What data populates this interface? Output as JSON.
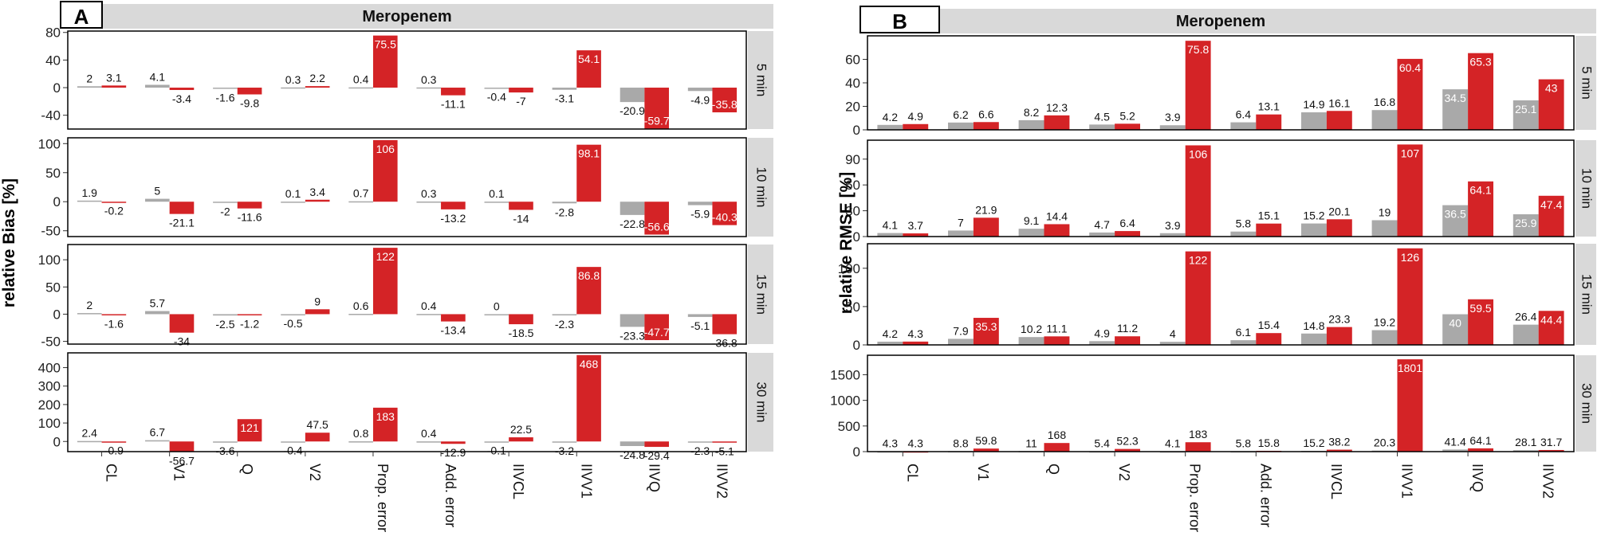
{
  "colors": {
    "gray": "#a9a9a9",
    "red": "#d42326",
    "strip": "#d9d9d9"
  },
  "chart_data": [
    {
      "type": "bar",
      "panel_label": "A",
      "title": "Meropenem",
      "ylabel": "relative Bias [%]",
      "categories": [
        "CL",
        "V1",
        "Q",
        "V2",
        "Prop. error",
        "Add. error",
        "IIVCL",
        "IIVV1",
        "IIVQ",
        "IIVV2"
      ],
      "facets": [
        {
          "label": "5 min",
          "ylim": [
            -60,
            82
          ],
          "ticks": [
            -40,
            0,
            40,
            80
          ],
          "tick_labels": [
            "-40",
            "0",
            "40",
            "80"
          ],
          "gray": [
            2,
            4.1,
            -1.6,
            0.3,
            0.4,
            0.3,
            -0.4,
            -3.1,
            -20.9,
            -4.9
          ],
          "red": [
            3.1,
            -3.4,
            -9.8,
            2.2,
            75.5,
            -11.1,
            -7,
            54.1,
            -59.7,
            -35.8
          ],
          "gray_labels": [
            "2",
            "4.1",
            "-1.6",
            "0.3",
            "0.4",
            "0.3",
            "-0.4",
            "-3.1",
            "-20.9",
            "-4.9"
          ],
          "red_labels": [
            "3.1",
            "-3.4",
            "-9.8",
            "2.2",
            "75.5",
            "-11.1",
            "-7",
            "54.1",
            "-59.7",
            "-35.8"
          ]
        },
        {
          "label": "10 min",
          "ylim": [
            -60,
            110
          ],
          "ticks": [
            -50,
            0,
            50,
            100
          ],
          "tick_labels": [
            "-50",
            "0",
            "50",
            "100"
          ],
          "gray": [
            1.9,
            5,
            -2,
            0.1,
            0.7,
            0.3,
            0.1,
            -2.8,
            -22.8,
            -5.9
          ],
          "red": [
            -0.2,
            -21.1,
            -11.6,
            3.4,
            106,
            -13.2,
            -14,
            98.1,
            -56.6,
            -40.3
          ],
          "gray_labels": [
            "1.9",
            "5",
            "-2",
            "0.1",
            "0.7",
            "0.3",
            "0.1",
            "-2.8",
            "-22.8",
            "-5.9"
          ],
          "red_labels": [
            "-0.2",
            "-21.1",
            "-11.6",
            "3.4",
            "106",
            "-13.2",
            "-14",
            "98.1",
            "-56.6",
            "-40.3"
          ]
        },
        {
          "label": "15 min",
          "ylim": [
            -55,
            128
          ],
          "ticks": [
            -50,
            0,
            50,
            100
          ],
          "tick_labels": [
            "-50",
            "0",
            "50",
            "100"
          ],
          "gray": [
            2,
            5.7,
            -2.5,
            -0.5,
            0.6,
            0.4,
            0,
            -2.3,
            -23.3,
            -5.1
          ],
          "red": [
            -1.6,
            -34,
            -1.2,
            9,
            122,
            -13.4,
            -18.5,
            86.8,
            -47.7,
            -36.8
          ],
          "gray_labels": [
            "2",
            "5.7",
            "-2.5",
            "-0.5",
            "0.6",
            "0.4",
            "0",
            "-2.3",
            "-23.3",
            "-5.1"
          ],
          "red_labels": [
            "-1.6",
            "-34",
            "-1.2",
            "9",
            "122",
            "-13.4",
            "-18.5",
            "86.8",
            "-47.7",
            "-36.8"
          ]
        },
        {
          "label": "30 min",
          "ylim": [
            -55,
            480
          ],
          "ticks": [
            0,
            100,
            200,
            300,
            400
          ],
          "tick_labels": [
            "0",
            "100",
            "200",
            "300",
            "400"
          ],
          "gray": [
            2.4,
            6.7,
            -3.6,
            -0.4,
            0.8,
            0.4,
            -0.1,
            -3.2,
            -24.8,
            -2.3
          ],
          "red": [
            -0.9,
            -56.7,
            121,
            47.5,
            183,
            -12.9,
            22.5,
            468,
            -29.4,
            -5.1
          ],
          "gray_labels": [
            "2.4",
            "6.7",
            "-3.6",
            "-0.4",
            "0.8",
            "0.4",
            "-0.1",
            "-3.2",
            "-24.8",
            "-2.3"
          ],
          "red_labels": [
            "-0.9",
            "-56.7",
            "121",
            "47.5",
            "183",
            "-12.9",
            "22.5",
            "468",
            "-29.4",
            "-5.1"
          ]
        }
      ]
    },
    {
      "type": "bar",
      "panel_label": "B",
      "title": "Meropenem",
      "ylabel": "relative RMSE [%]",
      "categories": [
        "CL",
        "V1",
        "Q",
        "V2",
        "Prop. error",
        "Add. error",
        "IIVCL",
        "IIVV1",
        "IIVQ",
        "IIVV2"
      ],
      "facets": [
        {
          "label": "5 min",
          "ylim": [
            0,
            80
          ],
          "ticks": [
            0,
            20,
            40,
            60
          ],
          "tick_labels": [
            "0",
            "20",
            "40",
            "60"
          ],
          "gray": [
            4.2,
            6.2,
            8.2,
            4.5,
            3.9,
            6.4,
            14.9,
            16.8,
            34.5,
            25.1
          ],
          "red": [
            4.9,
            6.6,
            12.3,
            5.2,
            75.8,
            13.1,
            16.1,
            60.4,
            65.3,
            43
          ],
          "gray_labels": [
            "4.2",
            "6.2",
            "8.2",
            "4.5",
            "3.9",
            "6.4",
            "14.9",
            "16.8",
            "34.5",
            "25.1"
          ],
          "red_labels": [
            "4.9",
            "6.6",
            "12.3",
            "5.2",
            "75.8",
            "13.1",
            "16.1",
            "60.4",
            "65.3",
            "43"
          ]
        },
        {
          "label": "10 min",
          "ylim": [
            0,
            112
          ],
          "ticks": [
            0,
            30,
            60,
            90
          ],
          "tick_labels": [
            "0",
            "30",
            "60",
            "90"
          ],
          "gray": [
            4.1,
            7,
            9.1,
            4.7,
            3.9,
            5.8,
            15.2,
            19,
            36.5,
            25.9
          ],
          "red": [
            3.7,
            21.9,
            14.4,
            6.4,
            106,
            15.1,
            20.1,
            107,
            64.1,
            47.4
          ],
          "gray_labels": [
            "4.1",
            "7",
            "9.1",
            "4.7",
            "3.9",
            "5.8",
            "15.2",
            "19",
            "36.5",
            "25.9"
          ],
          "red_labels": [
            "3.7",
            "21.9",
            "14.4",
            "6.4",
            "106",
            "15.1",
            "20.1",
            "107",
            "64.1",
            "47.4"
          ]
        },
        {
          "label": "15 min",
          "ylim": [
            0,
            132
          ],
          "ticks": [
            0,
            50,
            100
          ],
          "tick_labels": [
            "0",
            "50",
            "100"
          ],
          "gray": [
            4.2,
            7.9,
            10.2,
            4.9,
            4,
            6.1,
            14.8,
            19.2,
            40,
            26.4
          ],
          "red": [
            4.3,
            35.3,
            11.1,
            11.2,
            122,
            15.4,
            23.3,
            126,
            59.5,
            44.4
          ],
          "gray_labels": [
            "4.2",
            "7.9",
            "10.2",
            "4.9",
            "4",
            "6.1",
            "14.8",
            "19.2",
            "40",
            "26.4"
          ],
          "red_labels": [
            "4.3",
            "35.3",
            "11.1",
            "11.2",
            "122",
            "15.4",
            "23.3",
            "126",
            "59.5",
            "44.4"
          ]
        },
        {
          "label": "30 min",
          "ylim": [
            0,
            1880
          ],
          "ticks": [
            0,
            500,
            1000,
            1500
          ],
          "tick_labels": [
            "0",
            "500",
            "1000",
            "1500"
          ],
          "gray": [
            4.3,
            8.8,
            11,
            5.4,
            4.1,
            5.8,
            15.2,
            20.3,
            41.4,
            28.1
          ],
          "red": [
            4.3,
            59.8,
            168,
            52.3,
            183,
            15.8,
            38.2,
            1801,
            64.1,
            31.7
          ],
          "gray_labels": [
            "4.3",
            "8.8",
            "11",
            "5.4",
            "4.1",
            "5.8",
            "15.2",
            "20.3",
            "41.4",
            "28.1"
          ],
          "red_labels": [
            "4.3",
            "59.8",
            "168",
            "52.3",
            "183",
            "15.8",
            "38.2",
            "1801",
            "64.1",
            "31.7"
          ]
        }
      ]
    }
  ]
}
